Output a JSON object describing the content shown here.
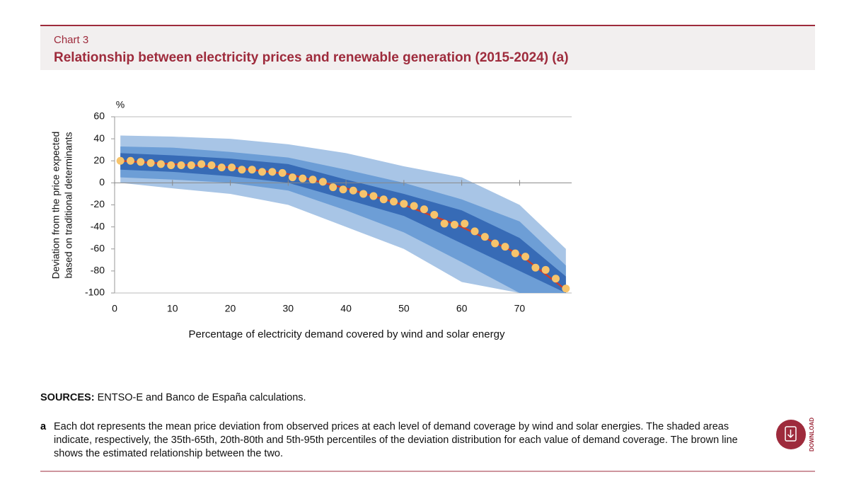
{
  "chart_data": {
    "type": "scatter",
    "chart_number": "Chart 3",
    "title": "Relationship between electricity prices and renewable generation (2015-2024) (a)",
    "y_unit": "%",
    "ylabel": [
      "Deviation from the price expected",
      "based on traditional determinants"
    ],
    "xlabel": "Percentage of electricity demand covered by wind and solar energy",
    "xlim": [
      0,
      79
    ],
    "xticks": [
      0,
      10,
      20,
      30,
      40,
      50,
      60,
      70
    ],
    "ylim": [
      -100,
      60
    ],
    "yticks": [
      60,
      40,
      20,
      0,
      -20,
      -40,
      -60,
      -80,
      -100
    ],
    "grid": false,
    "x": [
      1,
      2.75,
      4.5,
      6.25,
      8,
      9.75,
      11.5,
      13.25,
      15,
      16.75,
      18.5,
      20.25,
      22,
      23.75,
      25.5,
      27.25,
      29,
      30.75,
      32.5,
      34.25,
      36,
      37.75,
      39.5,
      41.25,
      43,
      44.75,
      46.5,
      48.25,
      50,
      51.75,
      53.5,
      55.25,
      57,
      58.75,
      60.5,
      62.25,
      64,
      65.75,
      67.5,
      69.25,
      71,
      72.75,
      74.5,
      76.25,
      78
    ],
    "values": [
      20,
      20,
      19,
      18,
      17,
      16,
      16,
      16,
      17,
      16,
      14,
      14,
      12,
      12,
      10,
      10,
      9,
      5,
      4,
      3,
      1,
      -4,
      -6,
      -7,
      -10,
      -12,
      -15,
      -17,
      -19,
      -21,
      -24,
      -29,
      -37,
      -38,
      -37,
      -44,
      -49,
      -55,
      -58,
      -64,
      -67,
      -77,
      -79,
      -87,
      -96
    ],
    "color": "#f7c46c",
    "bands": [
      {
        "x": [
          1,
          10,
          20,
          30,
          40,
          50,
          60,
          70,
          78
        ],
        "low": [
          0,
          -5,
          -10,
          -20,
          -40,
          -60,
          -90,
          -100,
          -100
        ],
        "high": [
          43,
          42,
          40,
          35,
          27,
          15,
          5,
          -20,
          -60
        ],
        "color": "#a8c5e6"
      },
      {
        "x": [
          1,
          10,
          20,
          30,
          40,
          50,
          60,
          70,
          78
        ],
        "low": [
          5,
          3,
          0,
          -7,
          -25,
          -45,
          -72,
          -100,
          -100
        ],
        "high": [
          33,
          32,
          28,
          23,
          12,
          0,
          -15,
          -35,
          -75
        ],
        "color": "#6d9ed6"
      },
      {
        "x": [
          1,
          10,
          20,
          30,
          40,
          50,
          60,
          70,
          78
        ],
        "low": [
          12,
          10,
          6,
          0,
          -15,
          -30,
          -55,
          -80,
          -100
        ],
        "high": [
          27,
          25,
          22,
          17,
          3,
          -10,
          -25,
          -50,
          -85
        ],
        "color": "#376bb6"
      }
    ],
    "fit": {
      "x": [
        1,
        10,
        20,
        30,
        40,
        50,
        60,
        70,
        78
      ],
      "values": [
        20,
        17,
        14,
        8,
        -5,
        -20,
        -40,
        -65,
        -97
      ],
      "color": "#c8402e"
    }
  },
  "sources": {
    "label": "SOURCES:",
    "text": "ENTSO-E and Banco de España calculations."
  },
  "note": {
    "marker": "a",
    "text": "Each dot represents the mean price deviation from observed prices at each level of demand coverage by wind and solar energies. The shaded areas indicate, respectively, the 35th-65th, 20th-80th and 5th-95th percentiles of the deviation distribution for each value of demand coverage. The brown line shows the estimated relationship between the two."
  },
  "download": "DOWNLOAD"
}
